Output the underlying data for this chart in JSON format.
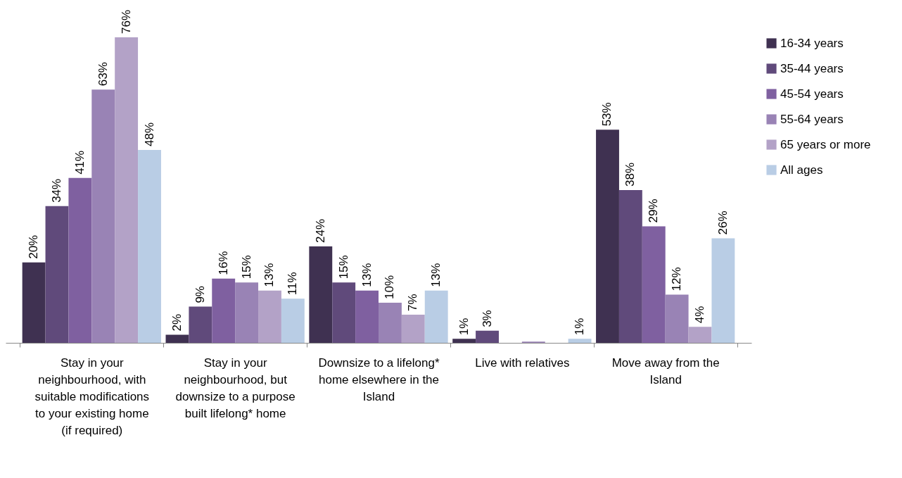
{
  "chart_data": {
    "type": "bar",
    "categories": [
      "Stay in your neighbourhood, with suitable modifications to your existing home (if required)",
      "Stay in your neighbourhood, but downsize to a purpose built lifelong* home",
      "Downsize to a lifelong* home elsewhere in the Island",
      "Live with relatives",
      "Move away from the Island"
    ],
    "series": [
      {
        "name": "16-34 years",
        "color": "#3f3151",
        "values": [
          20,
          2,
          24,
          1,
          53
        ],
        "value_labels": [
          "20%",
          "2%",
          "24%",
          "1%",
          "53%"
        ]
      },
      {
        "name": "35-44 years",
        "color": "#604a7b",
        "values": [
          34,
          9,
          15,
          3,
          38
        ],
        "value_labels": [
          "34%",
          "9%",
          "15%",
          "3%",
          "38%"
        ]
      },
      {
        "name": "45-54 years",
        "color": "#7f60a0",
        "values": [
          41,
          16,
          13,
          0,
          29
        ],
        "value_labels": [
          "41%",
          "16%",
          "13%",
          null,
          "29%"
        ]
      },
      {
        "name": "55-64 years",
        "color": "#9983b5",
        "values": [
          63,
          15,
          10,
          0.3,
          12
        ],
        "value_labels": [
          "63%",
          "15%",
          "10%",
          null,
          "12%"
        ]
      },
      {
        "name": "65 years or more",
        "color": "#b3a2c7",
        "values": [
          76,
          13,
          7,
          0,
          4
        ],
        "value_labels": [
          "76%",
          "13%",
          "7%",
          null,
          "4%"
        ]
      },
      {
        "name": "All ages",
        "color": "#b9cde5",
        "values": [
          48,
          11,
          13,
          1,
          26
        ],
        "value_labels": [
          "48%",
          "11%",
          "13%",
          "1%",
          "26%"
        ]
      }
    ],
    "legend": "right",
    "grid": false
  }
}
